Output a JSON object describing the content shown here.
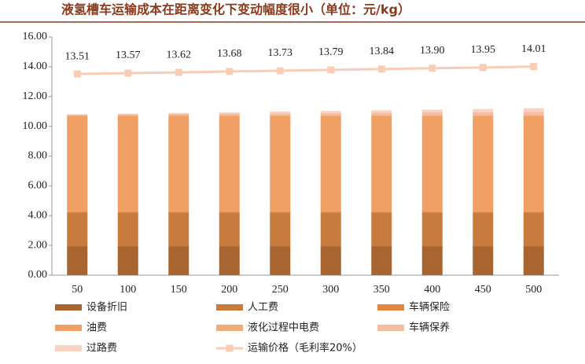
{
  "chart_data": {
    "type": "bar",
    "title": "液氢槽车运输成本在距离变化下变动幅度很小（单位：元/kg）",
    "categories": [
      50,
      100,
      150,
      200,
      250,
      300,
      350,
      400,
      450,
      500
    ],
    "ylim": [
      0,
      16
    ],
    "yticks": [
      {
        "value": 0,
        "label": "0.00"
      },
      {
        "value": 2,
        "label": "2.00"
      },
      {
        "value": 4,
        "label": "4.00"
      },
      {
        "value": 6,
        "label": "6.00"
      },
      {
        "value": 8,
        "label": "8.00"
      },
      {
        "value": 10,
        "label": "10.00"
      },
      {
        "value": 12,
        "label": "12.00"
      },
      {
        "value": 14,
        "label": "14.00"
      },
      {
        "value": 16,
        "label": "16.00"
      }
    ],
    "series": [
      {
        "name": "设备折旧",
        "color": "#a8652f",
        "values": [
          1.95,
          1.95,
          1.95,
          1.95,
          1.95,
          1.95,
          1.95,
          1.95,
          1.95,
          1.95
        ]
      },
      {
        "name": "人工费",
        "color": "#c77b3c",
        "values": [
          2.25,
          2.25,
          2.25,
          2.25,
          2.25,
          2.25,
          2.25,
          2.25,
          2.25,
          2.25
        ]
      },
      {
        "name": "车辆保险",
        "color": "#e2883c",
        "values": [
          0.05,
          0.05,
          0.05,
          0.05,
          0.05,
          0.05,
          0.05,
          0.05,
          0.05,
          0.05
        ]
      },
      {
        "name": "油费",
        "color": "#f0a065",
        "values": [
          6.45,
          6.45,
          6.45,
          6.45,
          6.45,
          6.45,
          6.45,
          6.45,
          6.45,
          6.45
        ]
      },
      {
        "name": "液化过程中电费",
        "color": "#f3ab78",
        "values": [
          0.06,
          0.06,
          0.06,
          0.06,
          0.06,
          0.06,
          0.06,
          0.06,
          0.06,
          0.06
        ]
      },
      {
        "name": "车辆保养",
        "color": "#f5bd9f",
        "values": [
          0.03,
          0.05,
          0.07,
          0.09,
          0.11,
          0.13,
          0.15,
          0.17,
          0.19,
          0.21
        ]
      },
      {
        "name": "过路费",
        "color": "#f9d3c1",
        "values": [
          0.02,
          0.04,
          0.07,
          0.09,
          0.12,
          0.14,
          0.16,
          0.19,
          0.21,
          0.24
        ]
      },
      {
        "name": "运输价格（毛利率20%）",
        "type": "line",
        "color": "#f8cdb6",
        "values": [
          13.51,
          13.57,
          13.62,
          13.68,
          13.73,
          13.79,
          13.84,
          13.9,
          13.95,
          14.01
        ],
        "value_labels": [
          "13.51",
          "13.57",
          "13.62",
          "13.68",
          "13.73",
          "13.79",
          "13.84",
          "13.90",
          "13.95",
          "14.01"
        ]
      }
    ]
  }
}
